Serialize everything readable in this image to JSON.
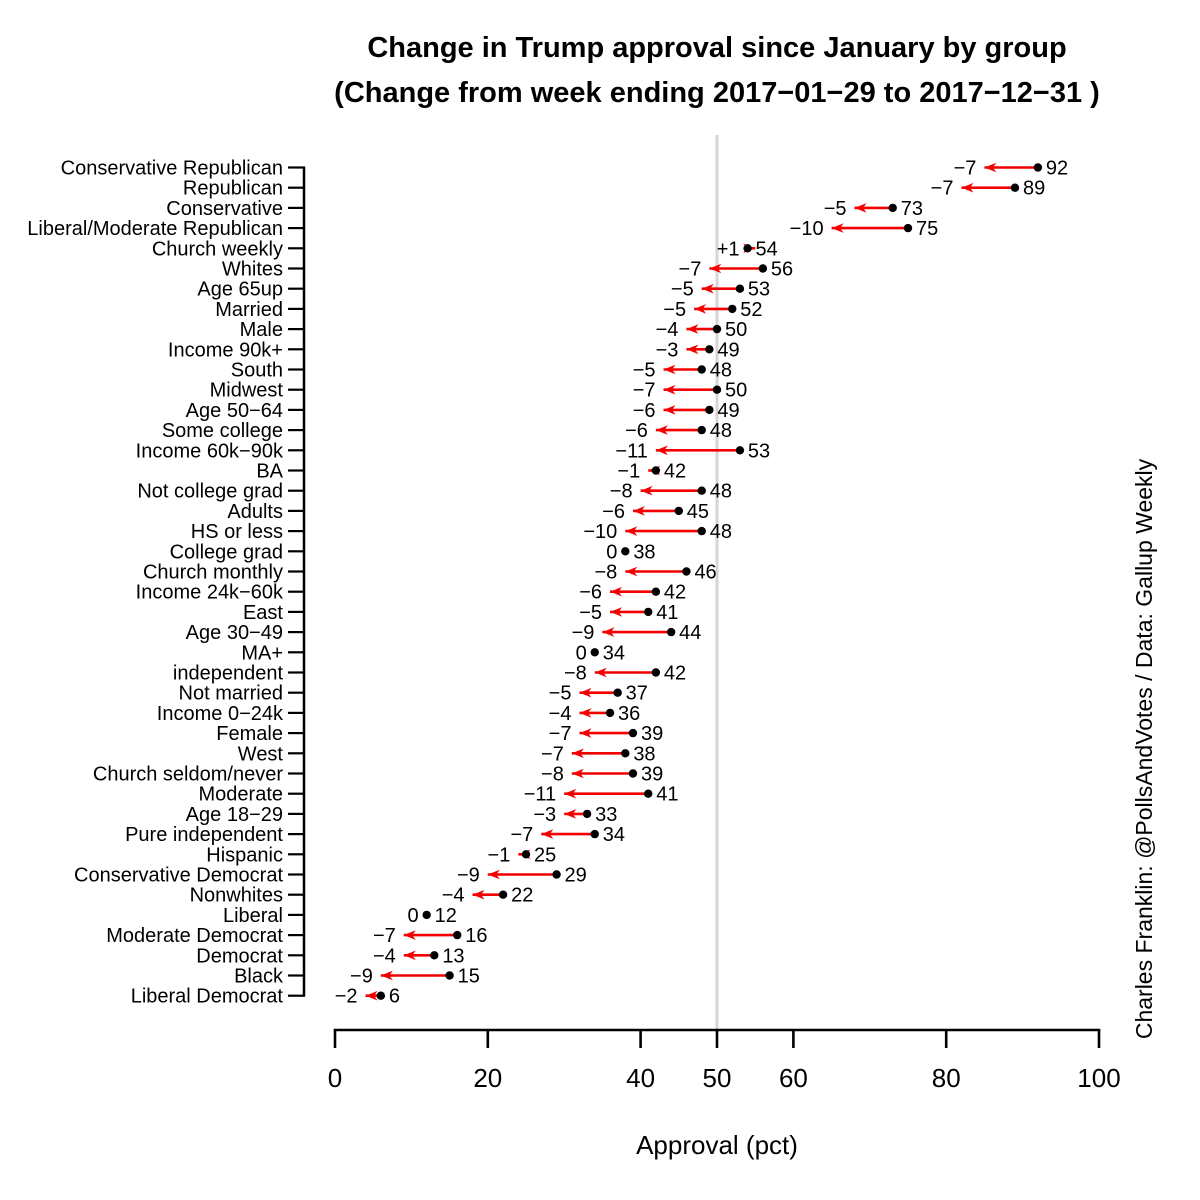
{
  "chart_data": {
    "type": "arrow-dot-plot",
    "title": "Change in Trump approval since January by group",
    "subtitle": "(Change from week ending 2017−01−29 to 2017−12−31 )",
    "xlabel": "Approval (pct)",
    "xlim": [
      0,
      100
    ],
    "xticks": [
      0,
      20,
      40,
      50,
      60,
      80,
      100
    ],
    "reference_line_x": 50,
    "credit": "Charles Franklin: @PollsAndVotes / Data: Gallup Weekly",
    "colors": {
      "arrow": "#f40000",
      "change_label": "#f40000",
      "dot": "#000000",
      "value_label": "#000000",
      "axis": "#000000",
      "reference_line": "#d6d6d6",
      "credit": "#2323c9"
    },
    "groups": [
      {
        "label": "Conservative Republican",
        "change": -7,
        "value": 92
      },
      {
        "label": "Republican",
        "change": -7,
        "value": 89
      },
      {
        "label": "Conservative",
        "change": -5,
        "value": 73
      },
      {
        "label": "Liberal/Moderate Republican",
        "change": -10,
        "value": 75
      },
      {
        "label": "Church weekly",
        "change": 1,
        "value": 54
      },
      {
        "label": "Whites",
        "change": -7,
        "value": 56
      },
      {
        "label": "Age 65up",
        "change": -5,
        "value": 53
      },
      {
        "label": "Married",
        "change": -5,
        "value": 52
      },
      {
        "label": "Male",
        "change": -4,
        "value": 50
      },
      {
        "label": "Income 90k+",
        "change": -3,
        "value": 49
      },
      {
        "label": "South",
        "change": -5,
        "value": 48
      },
      {
        "label": "Midwest",
        "change": -7,
        "value": 50
      },
      {
        "label": "Age 50−64",
        "change": -6,
        "value": 49
      },
      {
        "label": "Some college",
        "change": -6,
        "value": 48
      },
      {
        "label": "Income 60k−90k",
        "change": -11,
        "value": 53
      },
      {
        "label": "BA",
        "change": -1,
        "value": 42
      },
      {
        "label": "Not college grad",
        "change": -8,
        "value": 48
      },
      {
        "label": "Adults",
        "change": -6,
        "value": 45
      },
      {
        "label": "HS or less",
        "change": -10,
        "value": 48
      },
      {
        "label": "College grad",
        "change": 0,
        "value": 38
      },
      {
        "label": "Church monthly",
        "change": -8,
        "value": 46
      },
      {
        "label": "Income 24k−60k",
        "change": -6,
        "value": 42
      },
      {
        "label": "East",
        "change": -5,
        "value": 41
      },
      {
        "label": "Age 30−49",
        "change": -9,
        "value": 44
      },
      {
        "label": "MA+",
        "change": 0,
        "value": 34
      },
      {
        "label": "independent",
        "change": -8,
        "value": 42
      },
      {
        "label": "Not married",
        "change": -5,
        "value": 37
      },
      {
        "label": "Income 0−24k",
        "change": -4,
        "value": 36
      },
      {
        "label": "Female",
        "change": -7,
        "value": 39
      },
      {
        "label": "West",
        "change": -7,
        "value": 38
      },
      {
        "label": "Church seldom/never",
        "change": -8,
        "value": 39
      },
      {
        "label": "Moderate",
        "change": -11,
        "value": 41
      },
      {
        "label": "Age 18−29",
        "change": -3,
        "value": 33
      },
      {
        "label": "Pure independent",
        "change": -7,
        "value": 34
      },
      {
        "label": "Hispanic",
        "change": -1,
        "value": 25
      },
      {
        "label": "Conservative Democrat",
        "change": -9,
        "value": 29
      },
      {
        "label": "Nonwhites",
        "change": -4,
        "value": 22
      },
      {
        "label": "Liberal",
        "change": 0,
        "value": 12
      },
      {
        "label": "Moderate Democrat",
        "change": -7,
        "value": 16
      },
      {
        "label": "Democrat",
        "change": -4,
        "value": 13
      },
      {
        "label": "Black",
        "change": -9,
        "value": 15
      },
      {
        "label": "Liberal Democrat",
        "change": -2,
        "value": 6
      }
    ]
  }
}
